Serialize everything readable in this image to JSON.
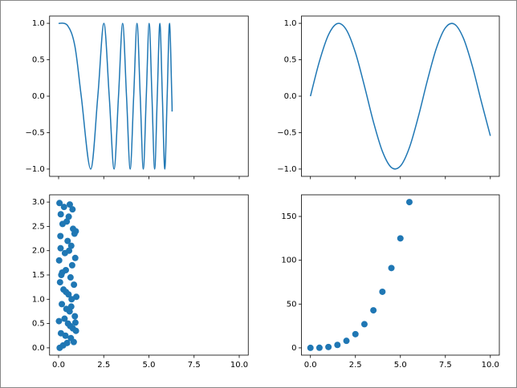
{
  "chart_data": [
    {
      "type": "line",
      "color": "#1f77b4",
      "x": [
        0,
        0.5,
        0.9,
        1.2533,
        1.7725,
        2.1708,
        2.5066,
        2.8025,
        3.07,
        3.316,
        3.5449,
        3.7599,
        3.9633,
        4.1568,
        4.3416,
        4.5189,
        4.6895,
        4.8541,
        5.0133,
        5.1676,
        5.3174,
        5.4631,
        5.605,
        5.7434,
        5.8786,
        6.0107,
        6.14,
        6.2666,
        6.2832
      ],
      "values": [
        1,
        0.969,
        0.689,
        0,
        -1,
        0,
        1,
        0,
        -1,
        0,
        1,
        0,
        -1,
        0,
        1,
        0,
        -1,
        0,
        1,
        0,
        -1,
        0,
        1,
        0,
        -1,
        0,
        1,
        0,
        -0.21
      ],
      "xlim": [
        -0.5,
        10.5
      ],
      "ylim": [
        -1.1,
        1.1
      ],
      "xticks": [
        0,
        2.5,
        5,
        7.5,
        10
      ],
      "xticklabels": false,
      "yticks": [
        {
          "value": -1,
          "label": "−1.0"
        },
        {
          "value": -0.5,
          "label": "−0.5"
        },
        {
          "value": 0,
          "label": "0.0"
        },
        {
          "value": 0.5,
          "label": "0.5"
        },
        {
          "value": 1,
          "label": "1.0"
        }
      ]
    },
    {
      "type": "line",
      "color": "#1f77b4",
      "x": [
        0,
        0.5,
        1,
        1.5,
        2,
        2.5,
        3,
        3.5,
        4,
        4.5,
        5,
        5.5,
        6,
        6.5,
        7,
        7.5,
        8,
        8.5,
        9,
        9.5,
        10
      ],
      "values": [
        0,
        0.479,
        0.841,
        0.997,
        0.909,
        0.598,
        0.141,
        -0.351,
        -0.757,
        -0.978,
        -0.959,
        -0.706,
        -0.279,
        0.215,
        0.657,
        0.938,
        0.989,
        0.798,
        0.412,
        -0.075,
        -0.544
      ],
      "xlim": [
        -0.5,
        10.5
      ],
      "ylim": [
        -1.1,
        1.1
      ],
      "xticks": [
        0,
        2.5,
        5,
        7.5,
        10
      ],
      "xticklabels": false,
      "yticks": [
        {
          "value": -1,
          "label": "−1.0"
        },
        {
          "value": -0.5,
          "label": "−0.5"
        },
        {
          "value": 0,
          "label": "0.0"
        },
        {
          "value": 0.5,
          "label": "0.5"
        },
        {
          "value": 1,
          "label": "1.0"
        }
      ]
    },
    {
      "type": "scatter",
      "color": "#1f77b4",
      "x": [
        0.05,
        0.12,
        0.3,
        0.45,
        0.62,
        0.8,
        0.95,
        0.1,
        0.22,
        0.5,
        0.7,
        0.88,
        0.03,
        0.35,
        0.58,
        0.75,
        0.92,
        0.15,
        0.4,
        0.66,
        0.85,
        0.08,
        0.27,
        0.55,
        0.72,
        0.98,
        0.18,
        0.43,
        0.61,
        0.9,
        0.02,
        0.33,
        0.52,
        0.79,
        0.96,
        0.13,
        0.38,
        0.68,
        0.84,
        0.06,
        0.25,
        0.47,
        0.64,
        0.93,
        0.2,
        0.56,
        0.77,
        0.11,
        0.41,
        0.7
      ],
      "values": [
        2.98,
        2.75,
        2.9,
        2.6,
        2.95,
        2.45,
        2.4,
        2.3,
        2.55,
        2.2,
        2.1,
        2.35,
        1.8,
        1.95,
        2.0,
        1.7,
        1.85,
        1.5,
        1.6,
        1.45,
        1.3,
        1.35,
        1.2,
        1.1,
        1.0,
        1.05,
        0.9,
        0.8,
        0.75,
        0.65,
        0.55,
        0.6,
        0.5,
        0.4,
        0.35,
        0.3,
        0.25,
        0.2,
        0.12,
        0.0,
        0.05,
        0.1,
        0.45,
        0.52,
        1.55,
        2.7,
        2.85,
        2.05,
        1.15,
        0.85
      ],
      "xlim": [
        -0.5,
        10.5
      ],
      "ylim": [
        -0.15,
        3.15
      ],
      "xticks": [
        {
          "value": 0,
          "label": "0.0"
        },
        {
          "value": 2.5,
          "label": "2.5"
        },
        {
          "value": 5,
          "label": "5.0"
        },
        {
          "value": 7.5,
          "label": "7.5"
        },
        {
          "value": 10,
          "label": "10.0"
        }
      ],
      "yticks": [
        {
          "value": 0,
          "label": "0.0"
        },
        {
          "value": 0.5,
          "label": "0.5"
        },
        {
          "value": 1,
          "label": "1.0"
        },
        {
          "value": 1.5,
          "label": "1.5"
        },
        {
          "value": 2,
          "label": "2.0"
        },
        {
          "value": 2.5,
          "label": "2.5"
        },
        {
          "value": 3,
          "label": "3.0"
        }
      ]
    },
    {
      "type": "scatter",
      "color": "#1f77b4",
      "x": [
        0,
        0.5,
        1,
        1.5,
        2,
        2.5,
        3,
        3.5,
        4,
        4.5,
        5,
        5.5
      ],
      "values": [
        0,
        0.125,
        1,
        3.375,
        8,
        15.625,
        27,
        42.875,
        64,
        91.125,
        125,
        166.375
      ],
      "xlim": [
        -0.5,
        10.5
      ],
      "ylim": [
        -8.3,
        174.7
      ],
      "xticks": [
        {
          "value": 0,
          "label": "0.0"
        },
        {
          "value": 2.5,
          "label": "2.5"
        },
        {
          "value": 5,
          "label": "5.0"
        },
        {
          "value": 7.5,
          "label": "7.5"
        },
        {
          "value": 10,
          "label": "10.0"
        }
      ],
      "yticks": [
        0,
        50,
        100,
        150
      ]
    }
  ]
}
